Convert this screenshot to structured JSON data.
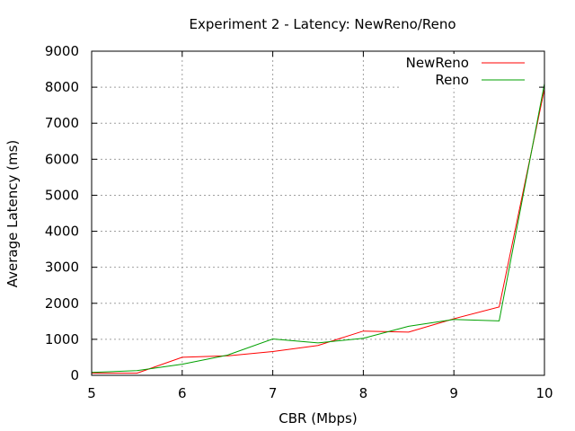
{
  "chart_data": {
    "type": "line",
    "title": "Experiment 2 - Latency: NewReno/Reno",
    "xlabel": "CBR (Mbps)",
    "ylabel": "Average Latency (ms)",
    "xlim": [
      5,
      10
    ],
    "ylim": [
      0,
      9000
    ],
    "xticks": [
      5,
      6,
      7,
      8,
      9,
      10
    ],
    "yticks": [
      0,
      1000,
      2000,
      3000,
      4000,
      5000,
      6000,
      7000,
      8000,
      9000
    ],
    "grid": true,
    "legend_position": "top-right",
    "x": [
      5,
      5.5,
      6,
      6.5,
      7,
      7.5,
      8,
      8.5,
      9,
      9.5,
      10
    ],
    "series": [
      {
        "name": "NewReno",
        "color": "#ff0000",
        "values": [
          60,
          60,
          500,
          540,
          660,
          830,
          1230,
          1200,
          1570,
          1900,
          7950
        ]
      },
      {
        "name": "Reno",
        "color": "#00a000",
        "values": [
          80,
          130,
          310,
          560,
          1010,
          900,
          1030,
          1360,
          1550,
          1510,
          8100
        ]
      }
    ]
  }
}
